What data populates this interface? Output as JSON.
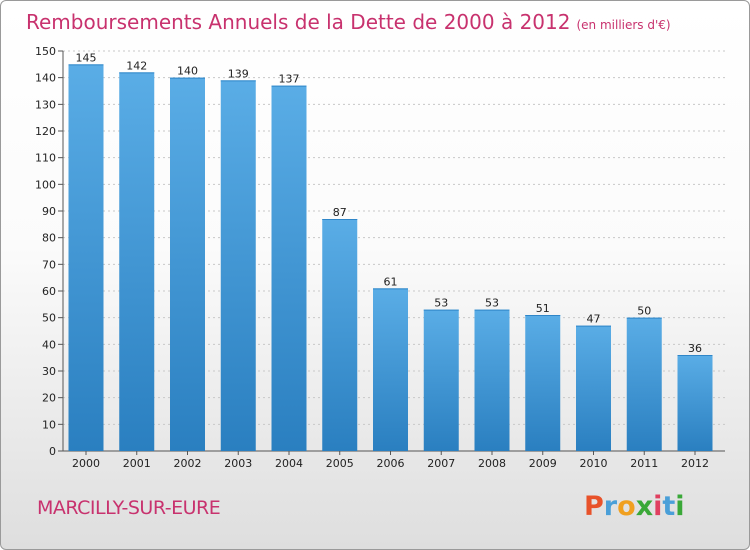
{
  "chart_data": {
    "type": "bar",
    "title": "Remboursements Annuels de la Dette de 2000 à 2012",
    "subtitle": "(en milliers d'€)",
    "categories": [
      "2000",
      "2001",
      "2002",
      "2003",
      "2004",
      "2005",
      "2006",
      "2007",
      "2008",
      "2009",
      "2010",
      "2011",
      "2012"
    ],
    "values": [
      145,
      142,
      140,
      139,
      137,
      87,
      61,
      53,
      53,
      51,
      47,
      50,
      36
    ],
    "ylim": [
      0,
      150
    ],
    "yticks": [
      0,
      10,
      20,
      30,
      40,
      50,
      60,
      70,
      80,
      90,
      100,
      110,
      120,
      130,
      140,
      150
    ],
    "grid": true,
    "xlabel": "",
    "ylabel": ""
  },
  "footer": {
    "commune": "MARCILLY-SUR-EURE",
    "logo_letters": [
      "P",
      "r",
      "o",
      "x",
      "i",
      "t",
      "i"
    ],
    "logo_colors": [
      "#e8522a",
      "#4a9fd8",
      "#f0a020",
      "#3aa838",
      "#e04060",
      "#4a9fd8",
      "#3aa838"
    ]
  },
  "colors": {
    "bar_light": "#5aade6",
    "bar_dark": "#2a7fc0",
    "title": "#c8326e"
  }
}
